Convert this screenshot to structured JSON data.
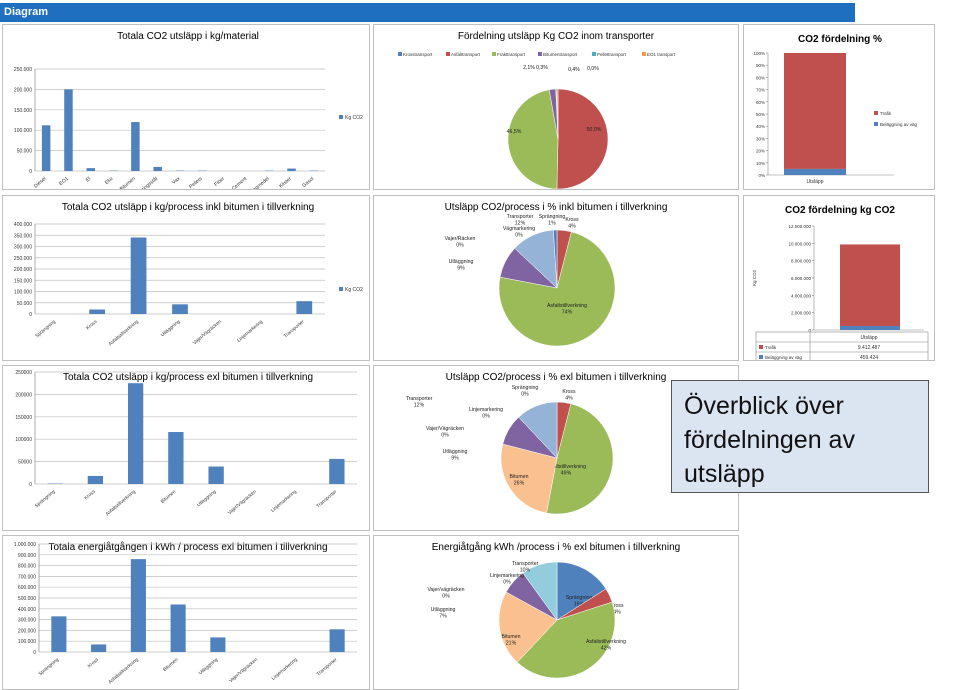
{
  "header": {
    "title": "Diagram"
  },
  "callout": {
    "line1": "Överblick över",
    "line2": "fördelningen av",
    "line3": "utsläpp"
  },
  "chart_data": [
    {
      "type": "bar",
      "title": "Totala CO2 utsläpp i kg/material",
      "categories": [
        "Diesel",
        "EO1",
        "El",
        "Eko",
        "Bitumen",
        "Armeringsstål",
        "Vax",
        "Pellets",
        "Fiber",
        "Cement",
        "Sprängmedel",
        "Klister",
        "Gasol"
      ],
      "series": [
        {
          "name": "Kg CO2",
          "values": [
            112000,
            200000,
            7000,
            1000,
            120000,
            10000,
            1000,
            1000,
            0,
            0,
            1000,
            6000,
            1000
          ]
        }
      ],
      "yticks": [
        "0",
        "50.000",
        "100.000",
        "150.000",
        "200.000",
        "250.000"
      ],
      "ylim": [
        0,
        250000
      ],
      "legend": "right"
    },
    {
      "type": "pie",
      "title": "Fördelning utsläpp Kg CO2 inom transporter",
      "legend_entries": [
        "Krosstransport",
        "Asfalttransport",
        "Frakttransport",
        "Bitumentransport",
        "Pellettransport",
        "EO1 transport"
      ],
      "slices": [
        {
          "name": "Krosstransport",
          "value": 0.0,
          "label": "0,0%"
        },
        {
          "name": "Asfalttransport",
          "value": 50.0,
          "label": "50,0%"
        },
        {
          "name": "Frakttransport",
          "value": 46.5,
          "label": "46,5%"
        },
        {
          "name": "Bitumentransport",
          "value": 2.1,
          "label": "2,1%"
        },
        {
          "name": "Pellettransport",
          "value": 0.3,
          "label": "0,3%"
        },
        {
          "name": "EO1 transport",
          "value": 0.4,
          "label": "0,4%"
        }
      ]
    },
    {
      "type": "bar",
      "title": "CO2 fördelning %",
      "categories": [
        "Utsläpp"
      ],
      "series": [
        {
          "name": "Beläggning av väg",
          "values": [
            5
          ]
        },
        {
          "name": "Trafik",
          "values": [
            95
          ]
        }
      ],
      "yticks": [
        "0%",
        "10%",
        "20%",
        "30%",
        "40%",
        "50%",
        "60%",
        "70%",
        "80%",
        "90%",
        "100%"
      ],
      "ylim": [
        0,
        100
      ],
      "legend": "right"
    },
    {
      "type": "bar",
      "title": "Totala CO2 utsläpp i kg/process inkl bitumen i tillverkning",
      "categories": [
        "Sprängning",
        "Kross",
        "Asfaltstillverkning",
        "Utläggning",
        "Vajer/Vägräcken",
        "Linjemarkering",
        "Transporter"
      ],
      "series": [
        {
          "name": "Kg CO2",
          "values": [
            0,
            20000,
            340000,
            43000,
            0,
            0,
            57000
          ]
        }
      ],
      "yticks": [
        "0",
        "50.000",
        "100.000",
        "150.000",
        "200.000",
        "250.000",
        "300.000",
        "350.000",
        "400.000"
      ],
      "ylim": [
        0,
        400000
      ],
      "legend": "right"
    },
    {
      "type": "pie",
      "title": "Utsläpp CO2/process i % inkl bitumen i tillverkning",
      "slices": [
        {
          "name": "Kross",
          "value": 4,
          "label": "Kross\n4%"
        },
        {
          "name": "Asfaltstillverkning",
          "value": 74,
          "label": "Asfaltstillverkning\n74%"
        },
        {
          "name": "Utläggning",
          "value": 9,
          "label": "Utläggning\n9%"
        },
        {
          "name": "Vajer/Räcken",
          "value": 0,
          "label": "Vajer/Räcken\n0%"
        },
        {
          "name": "Vägmarkering",
          "value": 0,
          "label": "Vägmarkering\n0%"
        },
        {
          "name": "Transporter",
          "value": 12,
          "label": "Transporter\n12%"
        },
        {
          "name": "Sprängning",
          "value": 1,
          "label": "Sprängning\n1%"
        }
      ]
    },
    {
      "type": "bar",
      "title": "CO2 fördelning kg CO2",
      "categories": [
        "Utsläpp"
      ],
      "series": [
        {
          "name": "Beläggning av väg",
          "values": [
            459424
          ]
        },
        {
          "name": "Trafik",
          "values": [
            9412487
          ]
        }
      ],
      "yticks": [
        "0",
        "2.000.000",
        "4.000.000",
        "6.000.000",
        "8.000.000",
        "10.000.000",
        "12.000.000"
      ],
      "ylim": [
        0,
        12000000
      ],
      "ylabel": "Kg CO2",
      "table": [
        {
          "name": "Trafik",
          "value": "9.412.487"
        },
        {
          "name": "Beläggning av väg",
          "value": "459.424"
        }
      ]
    },
    {
      "type": "bar",
      "title": "Totala CO2 utsläpp i kg/process exl bitumen i tillverkning",
      "categories": [
        "Sprängning",
        "Kross",
        "Asfaltstillverkning",
        "Bitumen",
        "Utläggning",
        "Vajer/Vägräcken",
        "Linjemarkering",
        "Transporter"
      ],
      "series": [
        {
          "name": "Kg CO2",
          "values": [
            1000,
            18000,
            225000,
            116000,
            39000,
            0,
            0,
            56000
          ]
        }
      ],
      "yticks": [
        "0",
        "50000",
        "100000",
        "150000",
        "200000",
        "250000"
      ],
      "ylim": [
        0,
        250000
      ]
    },
    {
      "type": "pie",
      "title": "Utsläpp CO2/process i % exl bitumen i tillverkning",
      "slices": [
        {
          "name": "Sprängning",
          "value": 0,
          "label": "Sprängning\n0%"
        },
        {
          "name": "Kross",
          "value": 4,
          "label": "Kross\n4%"
        },
        {
          "name": "Asfaltstillverkning",
          "value": 49,
          "label": "Asfaltstillverkning\n49%"
        },
        {
          "name": "Bitumen",
          "value": 26,
          "label": "Bitumen\n26%"
        },
        {
          "name": "Utläggning",
          "value": 9,
          "label": "Utläggning\n9%"
        },
        {
          "name": "Vajer/Vägräcken",
          "value": 0,
          "label": "Vajer/Vägräcken\n0%"
        },
        {
          "name": "Linjemarkering",
          "value": 0,
          "label": "Linjemarkering\n0%"
        },
        {
          "name": "Transporter",
          "value": 12,
          "label": "Transporter\n12%"
        }
      ]
    },
    {
      "type": "bar",
      "title": "Totala energiåtgången i kWh / process exl bitumen i tillverkning",
      "categories": [
        "Sprängning",
        "Kross",
        "Asfaltstillverkning",
        "Bitumen",
        "Utläggning",
        "Vajer/Vägräcken",
        "Linjemarkering",
        "Transporter"
      ],
      "series": [
        {
          "name": "kWh",
          "values": [
            330000,
            70000,
            860000,
            440000,
            135000,
            0,
            0,
            210000
          ]
        }
      ],
      "yticks": [
        "0",
        "100.000",
        "200.000",
        "300.000",
        "400.000",
        "500.000",
        "600.000",
        "700.000",
        "800.000",
        "900.000",
        "1.000.000"
      ],
      "ylim": [
        0,
        1000000
      ]
    },
    {
      "type": "pie",
      "title": "Energiåtgång kWh /process i % exl bitumen i tillverkning",
      "slices": [
        {
          "name": "Sprängning",
          "value": 16,
          "label": "Sprängning\n16%"
        },
        {
          "name": "Kross",
          "value": 4,
          "label": "Kross\n4%"
        },
        {
          "name": "Asfaltstillverkning",
          "value": 42,
          "label": "Asfaltstillverkning\n42%"
        },
        {
          "name": "Bitumen",
          "value": 21,
          "label": "Bitumen\n21%"
        },
        {
          "name": "Utläggning",
          "value": 7,
          "label": "Utläggning\n7%"
        },
        {
          "name": "Vajer/vägräcken",
          "value": 0,
          "label": "Vajer/vägräcken\n0%"
        },
        {
          "name": "Linjemarkering",
          "value": 0,
          "label": "Linjemarkering\n0%"
        },
        {
          "name": "Transporter",
          "value": 10,
          "label": "Transporter\n10%"
        }
      ]
    }
  ]
}
